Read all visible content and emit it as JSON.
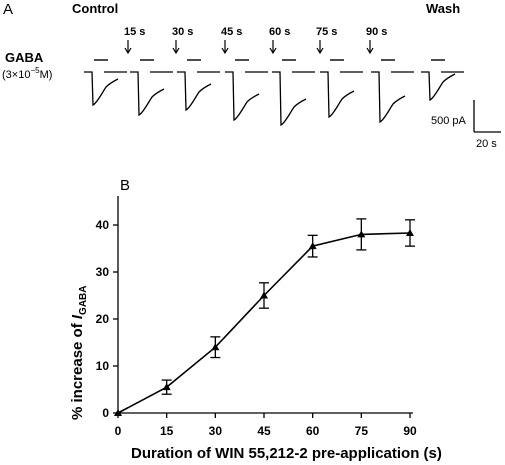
{
  "panel_a": {
    "label": "A",
    "control_label": "Control",
    "wash_label": "Wash",
    "gaba_label": "GABA",
    "gaba_conc": "(3×10",
    "gaba_conc_exp": "−5",
    "gaba_conc_unit": "M)",
    "times": [
      "15 s",
      "30 s",
      "45 s",
      "60 s",
      "75 s",
      "90 s"
    ],
    "scale_current": "500 pA",
    "scale_time": "20 s"
  },
  "chart_data": {
    "type": "line",
    "panel_label": "B",
    "xlabel": "Duration of WIN 55,212-2 pre-application (s)",
    "ylabel": "% increase of ",
    "ylabel_italic": "I",
    "ylabel_sub": "GABA",
    "xlim": [
      0,
      90
    ],
    "ylim": [
      0,
      40
    ],
    "xticks": [
      0,
      15,
      30,
      45,
      60,
      75,
      90
    ],
    "yticks": [
      0,
      10,
      20,
      30,
      40
    ],
    "grid": false,
    "marker": "triangle",
    "x": [
      0,
      15,
      30,
      45,
      60,
      75,
      90
    ],
    "y": [
      0,
      5.5,
      14,
      25,
      35.5,
      38,
      38.3
    ],
    "err": [
      0,
      1.5,
      2.2,
      2.7,
      2.3,
      3.3,
      2.8
    ]
  }
}
